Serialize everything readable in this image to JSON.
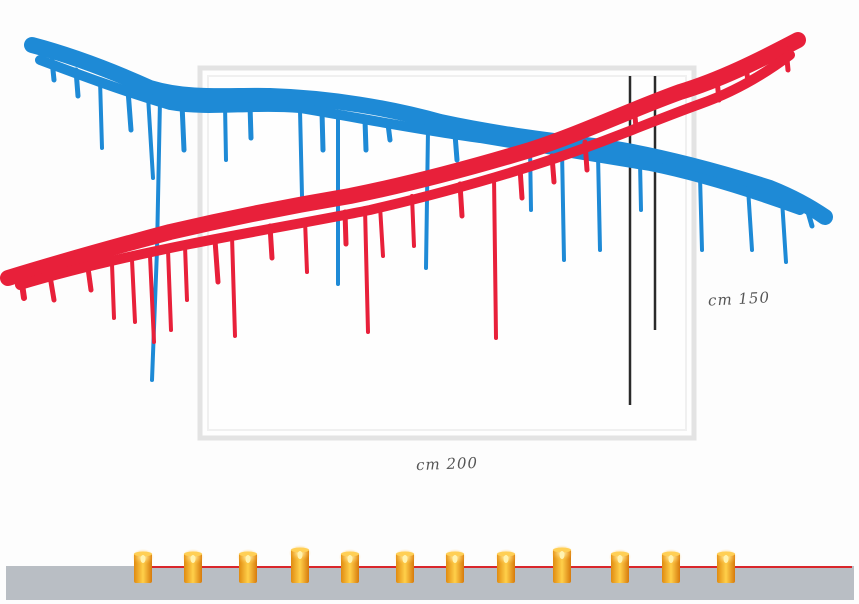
{
  "labels": {
    "height": "cm 150",
    "width": "cm 200"
  },
  "colors": {
    "blue_paint": "#1e8ad6",
    "red_paint": "#e8203a",
    "frame": "#e6e6e6",
    "floor": "#b9bec4",
    "floor_line": "#d9262b",
    "candle": "#f2a41e",
    "rods": "#2a2a2a"
  },
  "candles": {
    "count": 12
  }
}
